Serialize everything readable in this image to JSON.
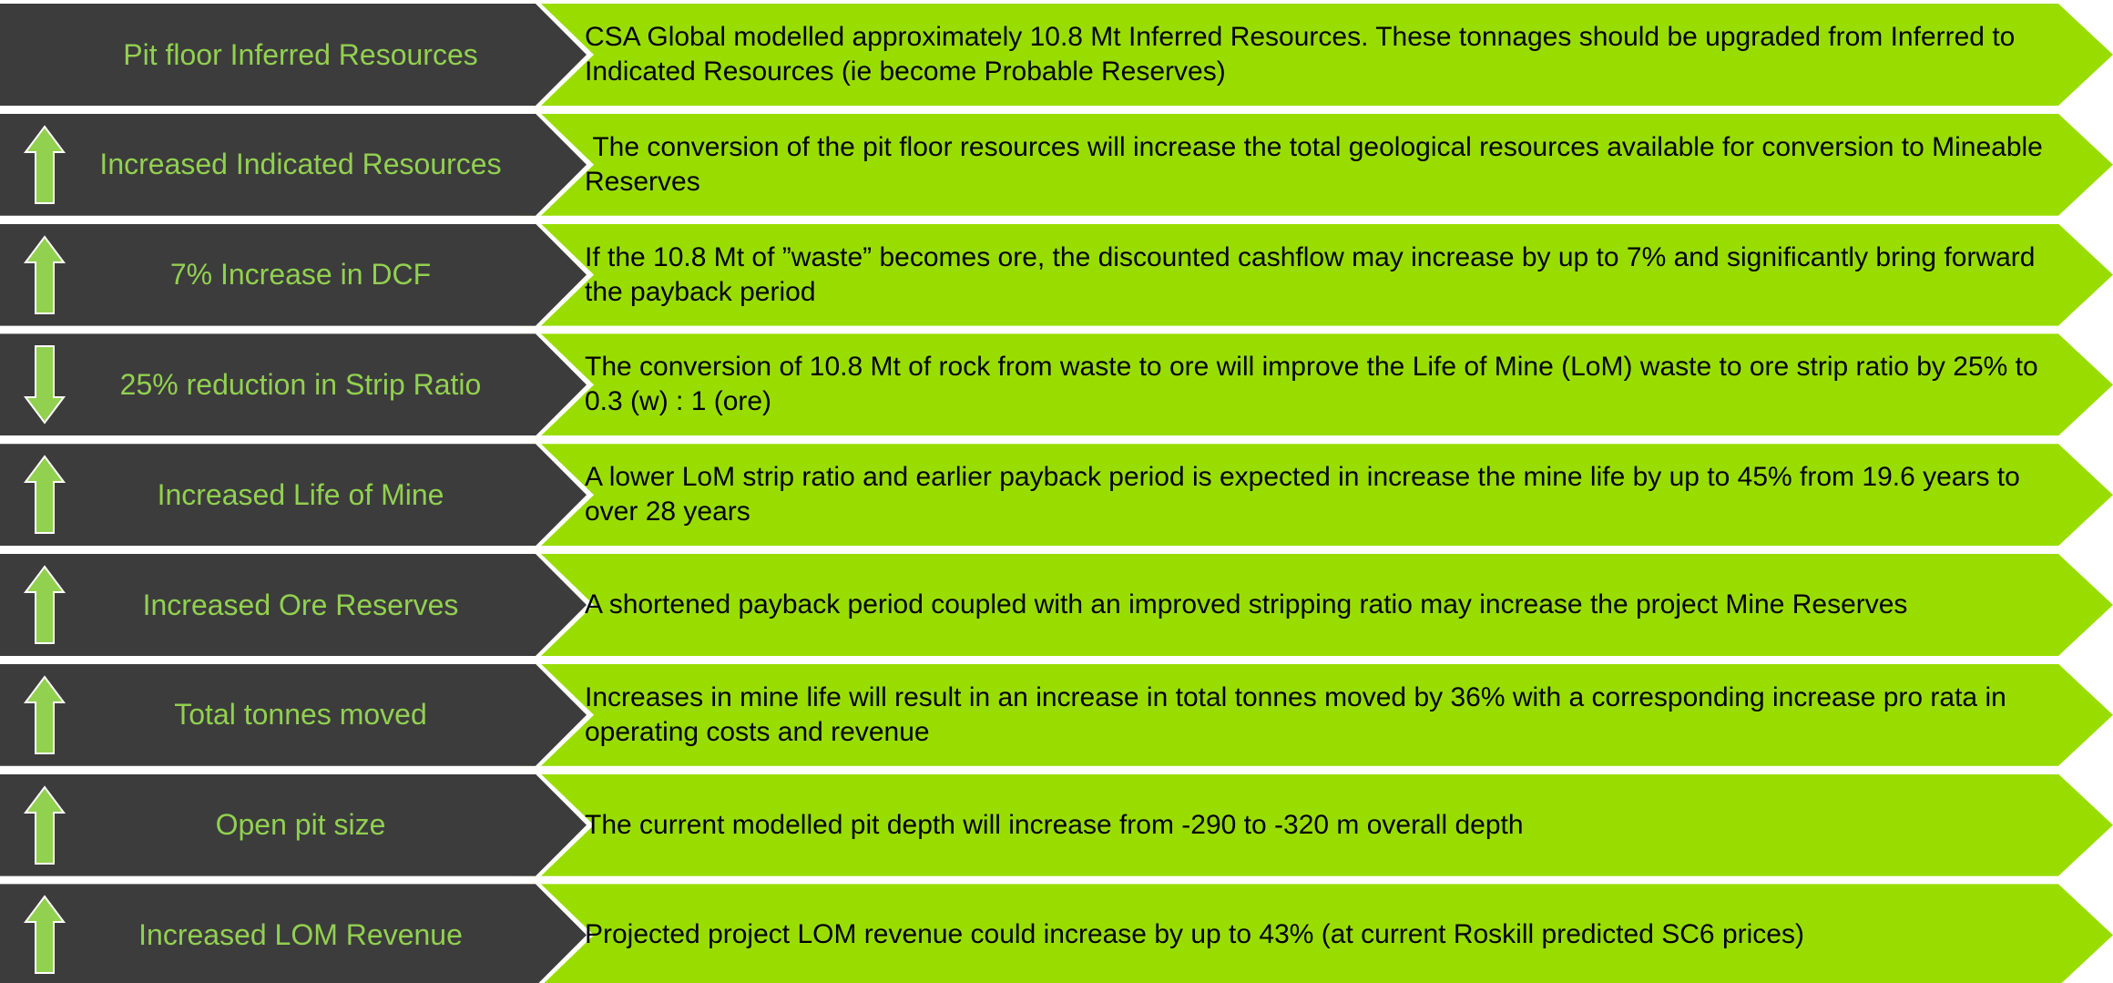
{
  "rows": [
    {
      "label": "Pit floor Inferred Resources",
      "indicator": null,
      "text": "CSA Global modelled approximately 10.8 Mt Inferred Resources. These tonnages should be upgraded from Inferred to Indicated Resources (ie become Probable Reserves)"
    },
    {
      "label": "Increased Indicated Resources",
      "indicator": "up",
      "text": " The conversion of the pit floor resources will increase the total geological resources available for conversion to Mineable Reserves"
    },
    {
      "label": "7% Increase in DCF",
      "indicator": "up",
      "text": "If the 10.8 Mt of ”waste” becomes ore, the discounted cashflow may increase by up to 7% and significantly bring forward the payback period"
    },
    {
      "label": "25% reduction in Strip Ratio",
      "indicator": "down",
      "text": "The conversion of 10.8 Mt of rock from waste to ore will improve the Life of Mine (LoM) waste to ore strip ratio by 25% to 0.3 (w) : 1 (ore)"
    },
    {
      "label": "Increased Life of Mine",
      "indicator": "up",
      "text": "A lower LoM strip ratio and earlier payback period is expected in increase the mine life by up to 45% from 19.6 years to over 28 years"
    },
    {
      "label": "Increased Ore Reserves",
      "indicator": "up",
      "text": "A shortened payback period coupled with an improved stripping ratio may increase the project Mine Reserves"
    },
    {
      "label": "Total tonnes moved",
      "indicator": "up",
      "text": "Increases in mine life will result in an increase in total tonnes moved by 36% with a corresponding increase pro rata in operating costs and revenue"
    },
    {
      "label": "Open pit size",
      "indicator": "up",
      "text": "The current modelled pit depth will increase from -290 to -320 m overall depth"
    },
    {
      "label": "Increased LOM Revenue",
      "indicator": "up",
      "text": "Projected project LOM revenue could increase by up to 43% (at current Roskill predicted SC6 prices)"
    }
  ]
}
